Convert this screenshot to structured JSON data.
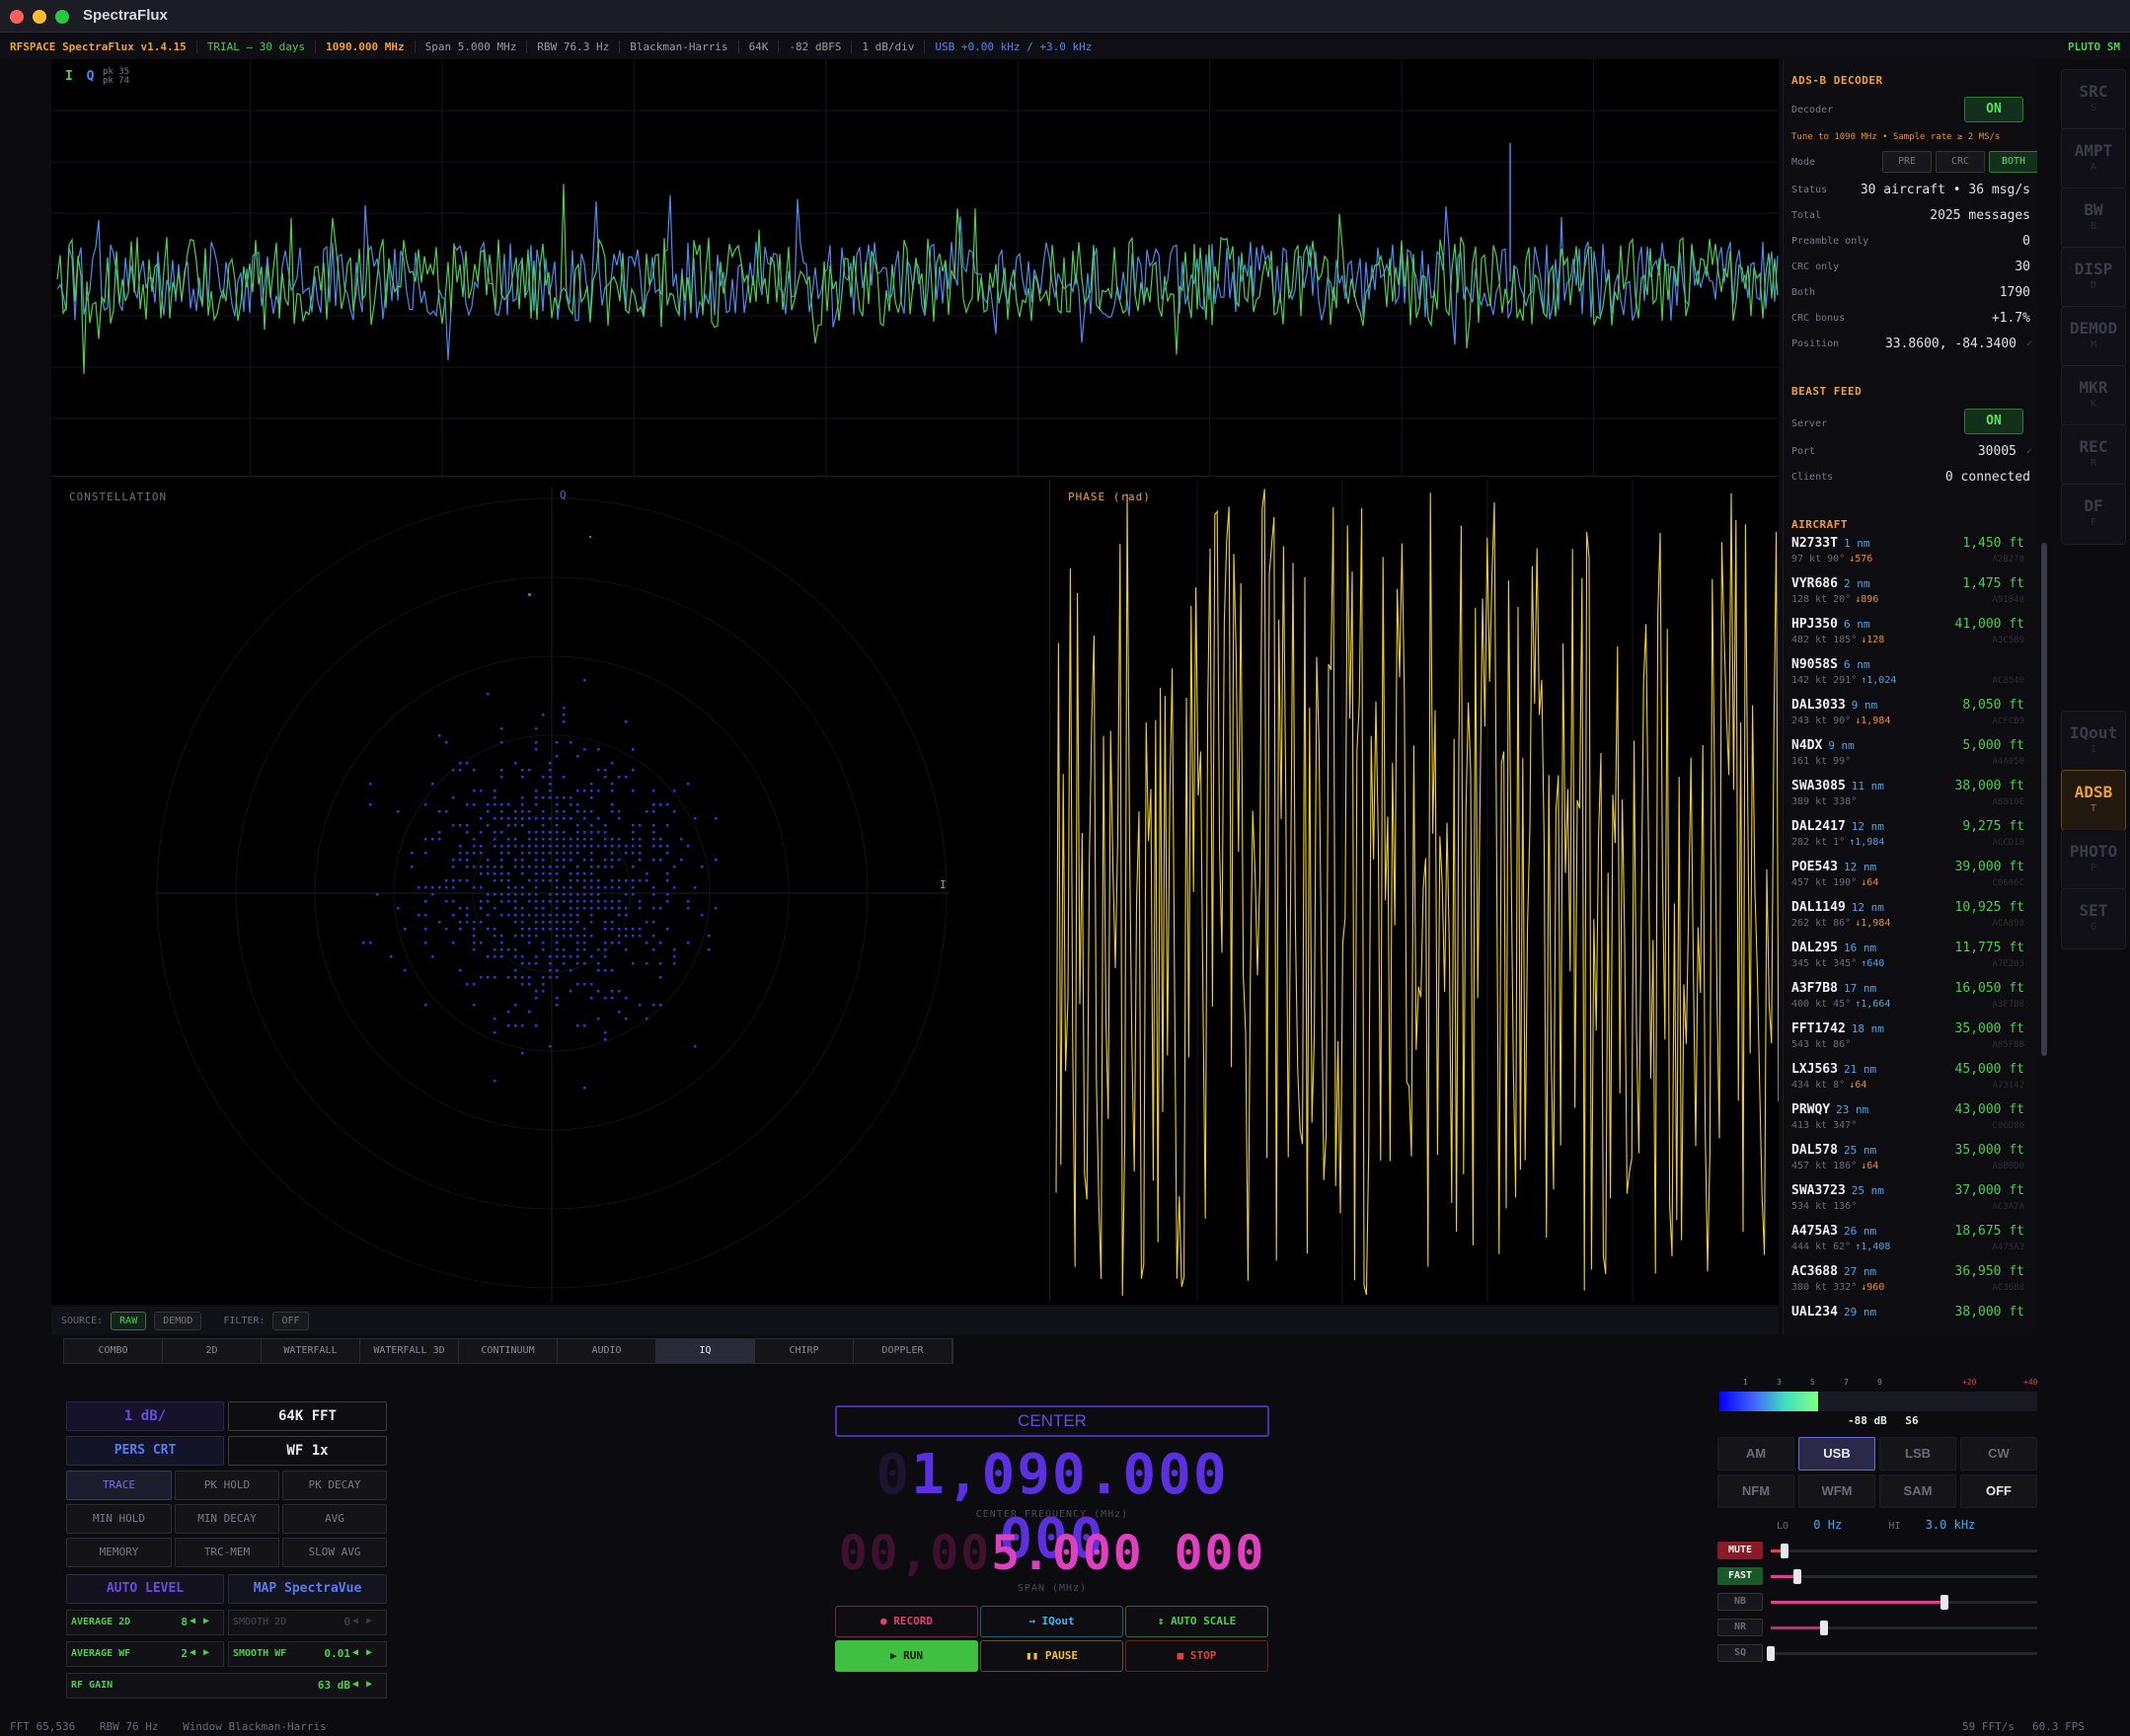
{
  "window": {
    "title": "SpectraFlux"
  },
  "status": {
    "brand": "RFSPACE SpectraFlux v1.4.15",
    "trial": "TRIAL — 30 days",
    "freq": "1090.000 MHz",
    "span": "Span 5.000 MHz",
    "rbw": "RBW 76.3 Hz",
    "window": "Blackman-Harris",
    "fft": "64K",
    "ref": "-82 dBFS",
    "div": "1 dB/div",
    "mode": "USB +0.00 kHz / +3.0 kHz",
    "device": "PLUTO SM"
  },
  "waveform": {
    "legend_i": "I",
    "legend_q": "Q",
    "pk_i": "pk 35",
    "pk_q": "pk 74",
    "color_i": "#4ad04a",
    "color_q": "#4a8af0"
  },
  "constellation": {
    "label": "CONSTELLATION",
    "axis_q": "Q",
    "axis_i": "I",
    "color": "#3a30e0"
  },
  "phase": {
    "label": "PHASE (rad)",
    "color": "#f0d020"
  },
  "sourcebar": {
    "source_label": "SOURCE:",
    "raw": "RAW",
    "demod": "DEMOD",
    "filter_label": "FILTER:",
    "filter": "OFF"
  },
  "tabs": [
    "COMBO",
    "2D",
    "WATERFALL",
    "WATERFALL 3D",
    "CONTINUUM",
    "AUDIO",
    "IQ",
    "CHIRP",
    "DOPPLER"
  ],
  "tabs_active": "IQ",
  "adsb": {
    "title": "ADS-B DECODER",
    "decoder_label": "Decoder",
    "decoder": "ON",
    "hint": "Tune to 1090 MHz • Sample rate ≥ 2 MS/s",
    "mode_label": "Mode",
    "modes": [
      "PRE",
      "CRC",
      "BOTH"
    ],
    "mode_active": "BOTH",
    "status_label": "Status",
    "status": "30 aircraft • 36 msg/s",
    "total_label": "Total",
    "total": "2025 messages",
    "preamble_label": "Preamble only",
    "preamble": "0",
    "crc_label": "CRC only",
    "crc": "30",
    "both_label": "Both",
    "both": "1790",
    "bonus_label": "CRC bonus",
    "bonus": "+1.7%",
    "position_label": "Position",
    "position": "33.8600, -84.3400"
  },
  "beast": {
    "title": "BEAST FEED",
    "server_label": "Server",
    "server": "ON",
    "port_label": "Port",
    "port": "30005",
    "clients_label": "Clients",
    "clients": "0 connected"
  },
  "aircraft_title": "AIRCRAFT",
  "aircraft": [
    {
      "cs": "N2733T",
      "dist": "1 nm",
      "alt": "1,450 ft",
      "spd": "97 kt 90°",
      "vr": "↓576",
      "dir": "dn",
      "hex": "A2B278"
    },
    {
      "cs": "VYR686",
      "dist": "2 nm",
      "alt": "1,475 ft",
      "spd": "128 kt 20°",
      "vr": "↓896",
      "dir": "dn",
      "hex": "A91848"
    },
    {
      "cs": "HPJ350",
      "dist": "6 nm",
      "alt": "41,000 ft",
      "spd": "482 kt 185°",
      "vr": "↓128",
      "dir": "dn",
      "hex": "A3C589"
    },
    {
      "cs": "N9058S",
      "dist": "6 nm",
      "alt": "",
      "spd": "142 kt 291°",
      "vr": "↑1,024",
      "dir": "up",
      "hex": "AC8540"
    },
    {
      "cs": "DAL3033",
      "dist": "9 nm",
      "alt": "8,050 ft",
      "spd": "243 kt 90°",
      "vr": "↓1,984",
      "dir": "dn",
      "hex": "ACFCB9"
    },
    {
      "cs": "N4DX",
      "dist": "9 nm",
      "alt": "5,000 ft",
      "spd": "161 kt 99°",
      "vr": "",
      "dir": "",
      "hex": "A4A050"
    },
    {
      "cs": "SWA3085",
      "dist": "11 nm",
      "alt": "38,000 ft",
      "spd": "389 kt 338°",
      "vr": "",
      "dir": "",
      "hex": "AB810E"
    },
    {
      "cs": "DAL2417",
      "dist": "12 nm",
      "alt": "9,275 ft",
      "spd": "282 kt 1°",
      "vr": "↑1,984",
      "dir": "up",
      "hex": "ACCD18"
    },
    {
      "cs": "POE543",
      "dist": "12 nm",
      "alt": "39,000 ft",
      "spd": "457 kt 190°",
      "vr": "↓64",
      "dir": "dn",
      "hex": "C0606C"
    },
    {
      "cs": "DAL1149",
      "dist": "12 nm",
      "alt": "10,925 ft",
      "spd": "262 kt 86°",
      "vr": "↓1,984",
      "dir": "dn",
      "hex": "ACA898"
    },
    {
      "cs": "DAL295",
      "dist": "16 nm",
      "alt": "11,775 ft",
      "spd": "345 kt 345°",
      "vr": "↑640",
      "dir": "up",
      "hex": "A7E203"
    },
    {
      "cs": "A3F7B8",
      "dist": "17 nm",
      "alt": "16,050 ft",
      "spd": "400 kt 45°",
      "vr": "↑1,664",
      "dir": "up",
      "hex": "A3F7B8"
    },
    {
      "cs": "FFT1742",
      "dist": "18 nm",
      "alt": "35,000 ft",
      "spd": "543 kt 86°",
      "vr": "",
      "dir": "",
      "hex": "A85FBB"
    },
    {
      "cs": "LXJ563",
      "dist": "21 nm",
      "alt": "45,000 ft",
      "spd": "434 kt 8°",
      "vr": "↓64",
      "dir": "dn",
      "hex": "A73142"
    },
    {
      "cs": "PRWQY",
      "dist": "23 nm",
      "alt": "43,000 ft",
      "spd": "413 kt 347°",
      "vr": "",
      "dir": "",
      "hex": "C06D80"
    },
    {
      "cs": "DAL578",
      "dist": "25 nm",
      "alt": "35,000 ft",
      "spd": "457 kt 186°",
      "vr": "↓64",
      "dir": "dn",
      "hex": "A8B0D0"
    },
    {
      "cs": "SWA3723",
      "dist": "25 nm",
      "alt": "37,000 ft",
      "spd": "534 kt 136°",
      "vr": "",
      "dir": "",
      "hex": "AC3A7A"
    },
    {
      "cs": "A475A3",
      "dist": "26 nm",
      "alt": "18,675 ft",
      "spd": "444 kt 62°",
      "vr": "↑1,408",
      "dir": "up",
      "hex": "A475A3"
    },
    {
      "cs": "AC3688",
      "dist": "27 nm",
      "alt": "36,950 ft",
      "spd": "380 kt 332°",
      "vr": "↓960",
      "dir": "dn",
      "hex": "AC3688"
    },
    {
      "cs": "UAL234",
      "dist": "29 nm",
      "alt": "38,000 ft",
      "spd": "",
      "vr": "",
      "dir": "",
      "hex": ""
    }
  ],
  "sidebar": [
    {
      "label": "SRC",
      "key": "S"
    },
    {
      "label": "AMPT",
      "key": "A"
    },
    {
      "label": "BW",
      "key": "B"
    },
    {
      "label": "DISP",
      "key": "D"
    },
    {
      "label": "DEMOD",
      "key": "M"
    },
    {
      "label": "MKR",
      "key": "K"
    },
    {
      "label": "REC",
      "key": "R"
    },
    {
      "label": "DF",
      "key": "F"
    },
    {
      "label": "IQout",
      "key": "I"
    },
    {
      "label": "ADSB",
      "key": "T"
    },
    {
      "label": "PHOTO",
      "key": "P"
    },
    {
      "label": "SET",
      "key": "G"
    }
  ],
  "sidebar_active": "ADSB",
  "controls": {
    "db_div": "1 dB/",
    "fft": "64K FFT",
    "pers": "PERS CRT",
    "wf": "WF 1x",
    "trace": "TRACE",
    "pk_hold": "PK HOLD",
    "pk_decay": "PK DECAY",
    "min_hold": "MIN HOLD",
    "min_decay": "MIN DECAY",
    "avg": "AVG",
    "memory": "MEMORY",
    "trc_mem": "TRC-MEM",
    "slow_avg": "SLOW AVG",
    "auto_level": "AUTO LEVEL",
    "map": "MAP SpectraVue",
    "average_2d_label": "AVERAGE 2D",
    "average_2d": "8",
    "smooth_2d_label": "SMOOTH 2D",
    "smooth_2d": "0",
    "average_wf_label": "AVERAGE WF",
    "average_wf": "2",
    "smooth_wf_label": "SMOOTH WF",
    "smooth_wf": "0.01",
    "rf_gain_label": "RF GAIN",
    "rf_gain": "63 dB"
  },
  "center": {
    "label": "CENTER",
    "freq_lead": "0",
    "freq": "1,090.000 000",
    "freq_caption": "CENTER FREQUENCY (MHz)",
    "span_lead": "00,00",
    "span": "5.000 000",
    "span_caption": "SPAN (MHz)",
    "record": "● RECORD",
    "iqout": "→ IQout",
    "autoscale": "↕ AUTO SCALE",
    "run": "▶ RUN",
    "pause": "▮▮ PAUSE",
    "stop": "■ STOP"
  },
  "smeter": {
    "ticks": [
      "1",
      "3",
      "5",
      "7",
      "9",
      "+20",
      "+40"
    ],
    "level_db": "-88 dB",
    "s_unit": "S6",
    "level_fraction": 0.5
  },
  "demod": {
    "modes": [
      "AM",
      "USB",
      "LSB",
      "CW",
      "NFM",
      "WFM",
      "SAM",
      "OFF"
    ],
    "active": "USB",
    "lo_label": "LO",
    "lo": "0 Hz",
    "hi_label": "HI",
    "hi": "3.0 kHz",
    "sliders": [
      {
        "name": "MUTE",
        "level": 0.05,
        "color": "#e04050",
        "tag_bg": "#8a1a28",
        "tag_fg": "#f0f0f0"
      },
      {
        "name": "FAST",
        "level": 0.1,
        "color": "#e04090",
        "tag_bg": "#1a5a2a",
        "tag_fg": "#f0f0f0"
      },
      {
        "name": "NB",
        "level": 0.65,
        "color": "#e04090",
        "tag_bg": "",
        "tag_fg": ""
      },
      {
        "name": "NR",
        "level": 0.2,
        "color": "#a04070",
        "tag_bg": "",
        "tag_fg": ""
      },
      {
        "name": "SQ",
        "level": 0.0,
        "color": "#e04090",
        "tag_bg": "",
        "tag_fg": ""
      }
    ]
  },
  "footer": {
    "fft": "FFT 65,536",
    "rbw": "RBW 76 Hz",
    "window": "Window Blackman-Harris",
    "fft_rate": "59 FFT/s",
    "fps": "60.3 FPS"
  }
}
